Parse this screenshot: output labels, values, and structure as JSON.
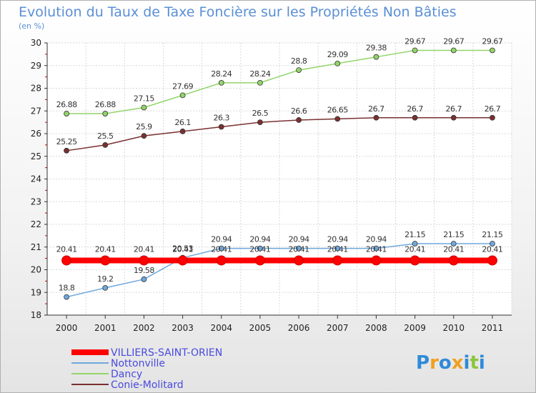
{
  "chart_data": {
    "type": "line",
    "title": "Evolution du Taux de Taxe Foncière sur les Propriétés Non Bâties",
    "ylabel": "(en %)",
    "xlabel": "",
    "ylim": [
      18,
      30
    ],
    "yticks": [
      18,
      19,
      20,
      21,
      22,
      23,
      24,
      25,
      26,
      27,
      28,
      29,
      30
    ],
    "categories": [
      "2000",
      "2001",
      "2002",
      "2003",
      "2004",
      "2005",
      "2006",
      "2007",
      "2008",
      "2009",
      "2010",
      "2011"
    ],
    "series": [
      {
        "name": "VILLIERS-SAINT-ORIEN",
        "color": "#ff0000",
        "values": [
          20.41,
          20.41,
          20.41,
          20.41,
          20.41,
          20.41,
          20.41,
          20.41,
          20.41,
          20.41,
          20.41,
          20.41
        ],
        "labels": [
          "20.41",
          "20.41",
          "20.41",
          "20.41",
          "20.41",
          "20.41",
          "20.41",
          "20.41",
          "20.41",
          "20.41",
          "20.41",
          "20.41"
        ]
      },
      {
        "name": "Nottonville",
        "color": "#6fa8dc",
        "values": [
          18.8,
          19.2,
          19.58,
          20.53,
          20.94,
          20.94,
          20.94,
          20.94,
          20.94,
          21.15,
          21.15,
          21.15
        ],
        "labels": [
          "18.8",
          "19.2",
          "19.58",
          "20.53",
          "20.94",
          "20.94",
          "20.94",
          "20.94",
          "20.94",
          "21.15",
          "21.15",
          "21.15"
        ]
      },
      {
        "name": "Dancy",
        "color": "#93d46a",
        "values": [
          26.88,
          26.88,
          27.15,
          27.69,
          28.24,
          28.24,
          28.8,
          29.09,
          29.38,
          29.67,
          29.67,
          29.67
        ],
        "labels": [
          "26.88",
          "26.88",
          "27.15",
          "27.69",
          "28.24",
          "28.24",
          "28.8",
          "29.09",
          "29.38",
          "29.67",
          "29.67",
          "29.67"
        ]
      },
      {
        "name": "Conie-Molitard",
        "color": "#7a3030",
        "values": [
          25.25,
          25.5,
          25.9,
          26.1,
          26.3,
          26.5,
          26.6,
          26.65,
          26.7,
          26.7,
          26.7,
          26.7
        ],
        "labels": [
          "25.25",
          "25.5",
          "25.9",
          "26.1",
          "26.3",
          "26.5",
          "26.6",
          "26.65",
          "26.7",
          "26.7",
          "26.7",
          "26.7"
        ]
      }
    ],
    "legend": "bottom-left",
    "grid": true
  },
  "logo": {
    "parts": [
      "P",
      "r",
      "o",
      "x",
      "i",
      "t",
      "i"
    ],
    "colors": [
      "#2e8bd8",
      "#f0a020",
      "#2e8bd8",
      "#f0a020",
      "#2e8bd8",
      "#8cc63f",
      "#2e8bd8"
    ]
  }
}
